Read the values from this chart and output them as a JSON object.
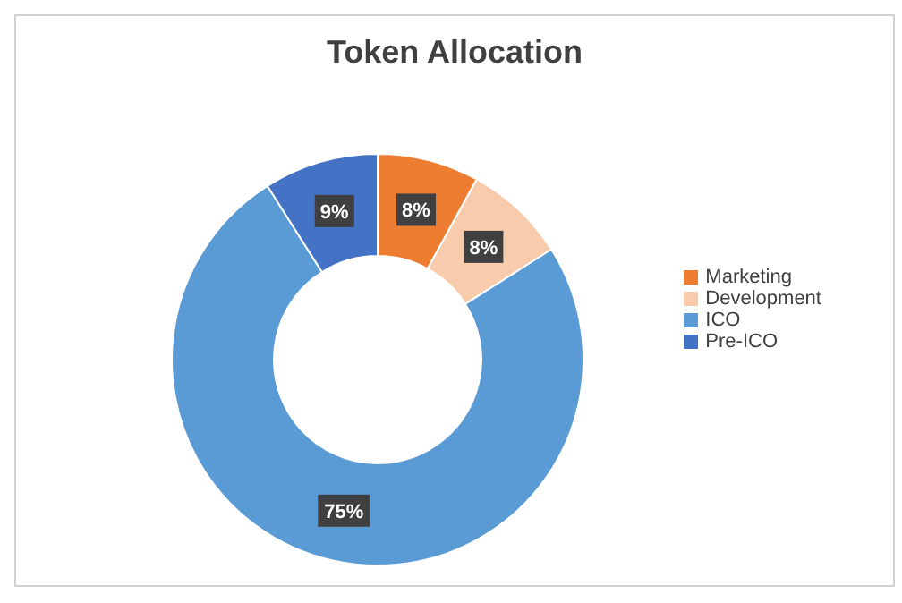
{
  "chart_data": {
    "type": "donut",
    "title": "Token Allocation",
    "categories": [
      "Marketing",
      "Development",
      "ICO",
      "Pre-ICO"
    ],
    "values": [
      8,
      8,
      75,
      9
    ],
    "colors": [
      "#ed7d31",
      "#f8cbad",
      "#5b9bd5",
      "#4472c4"
    ],
    "value_labels": [
      "8%",
      "8%",
      "75%",
      "9%"
    ],
    "legend": "right"
  }
}
